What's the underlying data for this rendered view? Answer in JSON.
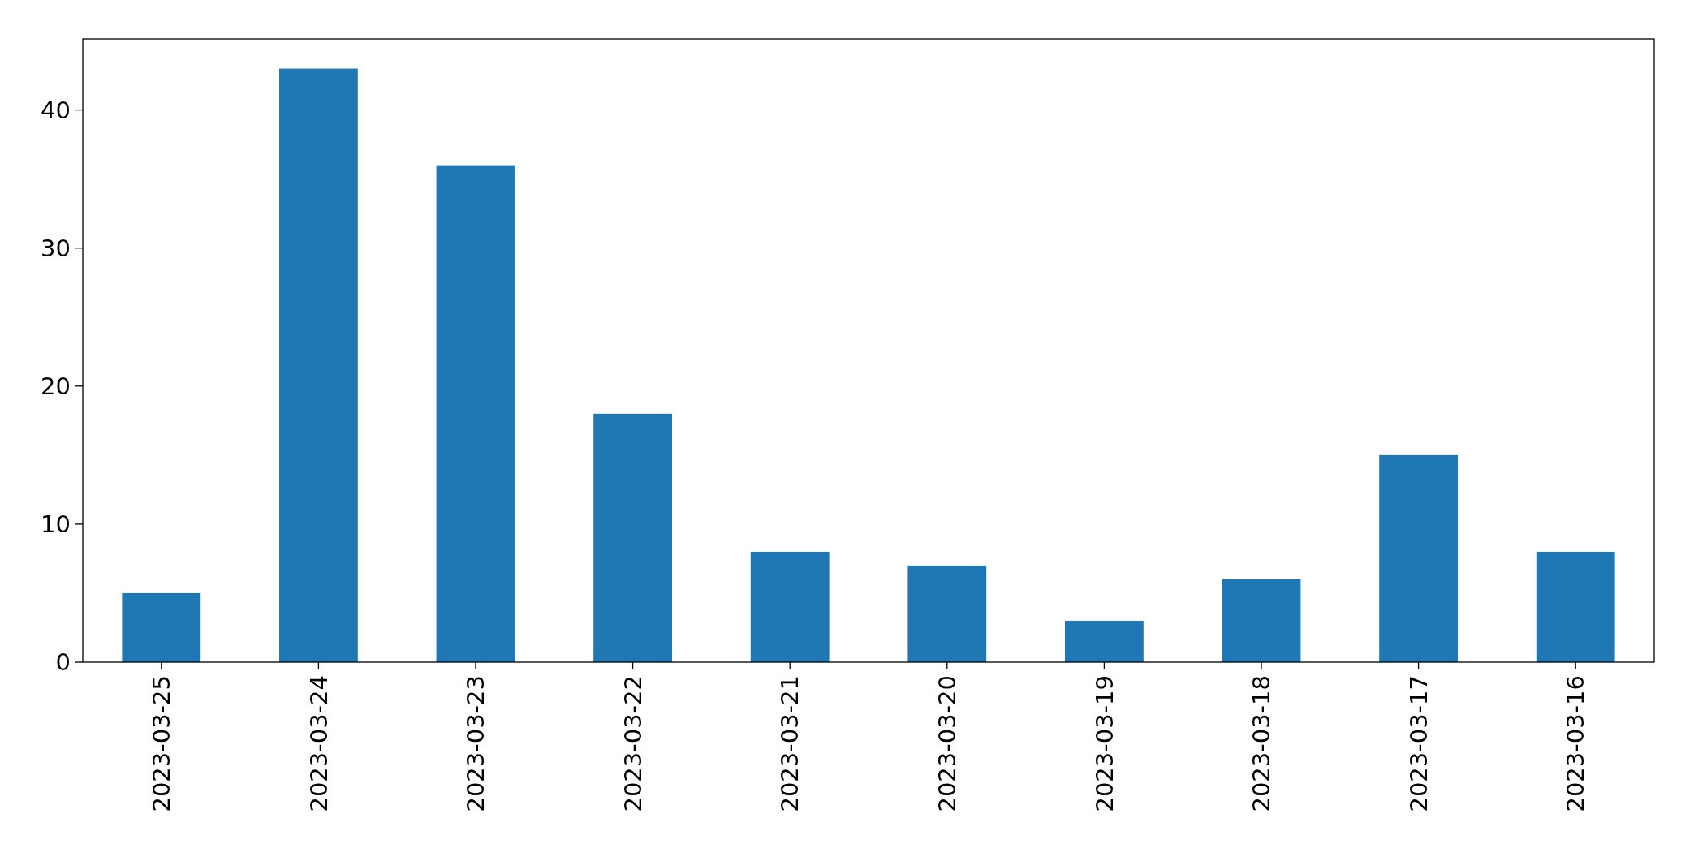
{
  "chart_data": {
    "type": "bar",
    "categories": [
      "2023-03-25",
      "2023-03-24",
      "2023-03-23",
      "2023-03-22",
      "2023-03-21",
      "2023-03-20",
      "2023-03-19",
      "2023-03-18",
      "2023-03-17",
      "2023-03-16"
    ],
    "values": [
      5,
      43,
      36,
      18,
      8,
      7,
      3,
      6,
      15,
      8
    ],
    "color": "#1f77b4",
    "ylim": [
      0,
      45.15
    ],
    "yticks": [
      0,
      10,
      20,
      30,
      40
    ],
    "grid": false
  }
}
